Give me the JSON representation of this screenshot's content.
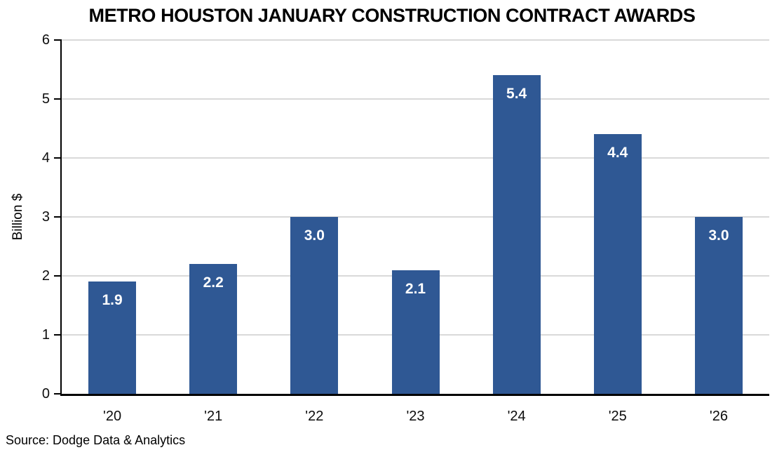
{
  "title": "METRO HOUSTON JANUARY CONSTRUCTION CONTRACT AWARDS",
  "source_note": "Source: Dodge Data & Analytics",
  "chart_data": {
    "type": "bar",
    "title": "METRO HOUSTON JANUARY CONSTRUCTION CONTRACT AWARDS",
    "categories": [
      "'20",
      "'21",
      "'22",
      "'23",
      "'24",
      "'25",
      "'26"
    ],
    "values": [
      1.9,
      2.2,
      3.0,
      2.1,
      5.4,
      4.4,
      3.0
    ],
    "bar_labels": [
      "1.9",
      "2.2",
      "3.0",
      "2.1",
      "5.4",
      "4.4",
      "3.0"
    ],
    "xlabel": "",
    "ylabel": "Billion $",
    "ylim": [
      0,
      6
    ],
    "yticks": [
      0,
      1,
      2,
      3,
      4,
      5,
      6
    ],
    "grid": "horizontal",
    "legend_position": "none",
    "bar_color": "#2F5894",
    "bar_label_color": "#FFFFFF",
    "gridline_color": "#D9D9D9",
    "axis_color": "#000000",
    "source": "Source: Dodge Data & Analytics"
  }
}
